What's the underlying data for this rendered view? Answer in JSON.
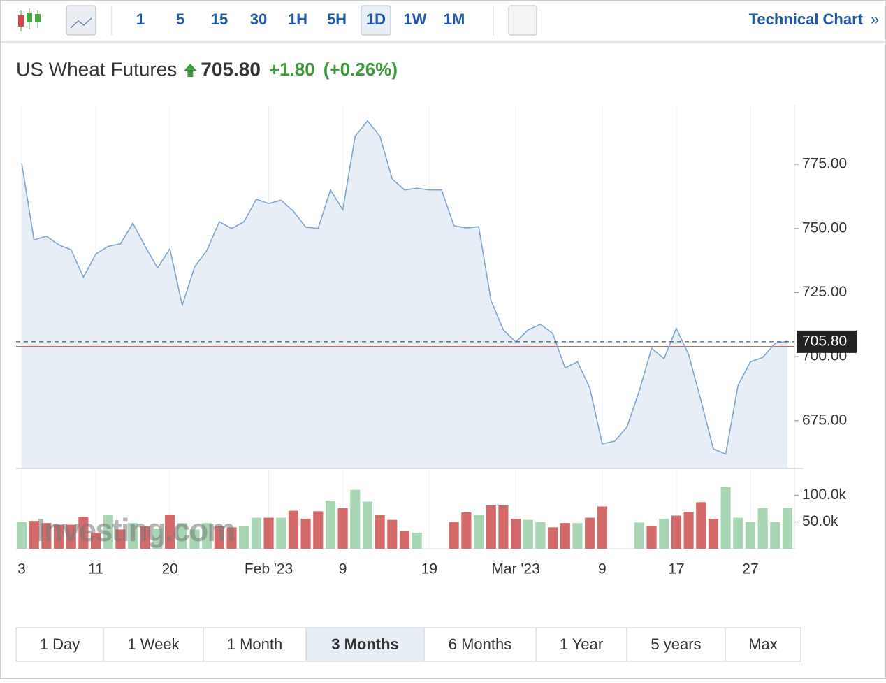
{
  "toolbar": {
    "intervals": [
      "1",
      "5",
      "15",
      "30",
      "1H",
      "5H",
      "1D",
      "1W",
      "1M"
    ],
    "active": "1D",
    "link": "Technical Chart",
    "link_icon": "»"
  },
  "header": {
    "title": "US Wheat Futures",
    "change": "+1.80",
    "change_pct": "(+0.26%)"
  },
  "chart_data": {
    "type": "line",
    "color": "#7ea6cf",
    "fill": "#e8eef5",
    "categories": [
      "3",
      null,
      null,
      null,
      null,
      null,
      "11",
      null,
      null,
      null,
      null,
      null,
      "20",
      null,
      null,
      null,
      null,
      null,
      null,
      null,
      "Feb '23",
      null,
      null,
      null,
      null,
      null,
      "9",
      null,
      null,
      null,
      null,
      null,
      null,
      "19",
      null,
      null,
      null,
      null,
      null,
      null,
      "Mar '23",
      null,
      null,
      null,
      null,
      null,
      null,
      "9",
      null,
      null,
      null,
      null,
      null,
      "17",
      null,
      null,
      null,
      null,
      null,
      "27",
      null,
      null,
      null
    ],
    "values": [
      775.5,
      745.5,
      747,
      743.6,
      741.7,
      731,
      740,
      743,
      744,
      752,
      743,
      734.6,
      742,
      720,
      735,
      741.5,
      752.6,
      750,
      752.6,
      761.4,
      759.7,
      761,
      756.7,
      750.5,
      750,
      765,
      757.3,
      786,
      792,
      786,
      769.3,
      765,
      765.7,
      765,
      765,
      751,
      750.2,
      750.7,
      721.8,
      710.4,
      705.7,
      710.4,
      712.6,
      709,
      695.6,
      698,
      687.7,
      666,
      667,
      672.5,
      686.6,
      703.3,
      699.2,
      711,
      700.8,
      682.8,
      664,
      662,
      688.8,
      698,
      699.7,
      705.2,
      706
    ],
    "ylim": [
      656.4,
      798.2
    ],
    "yticks": [
      {
        "value": 675,
        "label": "675.00"
      },
      {
        "value": 700,
        "label": "700.00"
      },
      {
        "value": 725,
        "label": "725.00"
      },
      {
        "value": 750,
        "label": "750.00"
      },
      {
        "value": 775,
        "label": "775.00"
      }
    ],
    "last": {
      "value": 705.8,
      "label": "705.80"
    },
    "reference_line": 704,
    "grid": true,
    "watermark": "Investing.com",
    "volume": {
      "values": [
        50,
        52,
        48,
        45,
        45,
        60,
        30,
        64,
        36,
        48,
        42,
        38,
        64,
        48,
        36,
        48,
        42,
        40,
        43,
        58,
        58,
        58,
        71,
        56,
        70,
        90,
        76,
        110,
        88,
        63,
        54,
        33,
        30,
        null,
        null,
        50,
        68,
        63,
        81,
        81,
        56,
        54,
        50,
        40,
        48,
        48,
        58,
        79,
        null,
        null,
        49,
        43,
        56,
        62,
        69,
        87,
        56,
        115,
        58,
        50,
        76,
        50,
        76
      ],
      "colors": [
        "#a8d5b4",
        "#d4696a",
        "#d4696a",
        "#d4696a",
        "#d4696a",
        "#d4696a",
        "#d4696a",
        "#a8d5b4",
        "#d4696a",
        "#a8d5b4",
        "#d4696a",
        "#a8d5b4",
        "#d4696a",
        "#a8d5b4",
        "#a8d5b4",
        "#a8d5b4",
        "#d4696a",
        "#d4696a",
        "#a8d5b4",
        "#a8d5b4",
        "#d4696a",
        "#a8d5b4",
        "#d4696a",
        "#d4696a",
        "#d4696a",
        "#a8d5b4",
        "#d4696a",
        "#a8d5b4",
        "#a8d5b4",
        "#d4696a",
        "#d4696a",
        "#d4696a",
        "#a8d5b4",
        null,
        null,
        "#d4696a",
        "#d4696a",
        "#a8d5b4",
        "#d4696a",
        "#d4696a",
        "#d4696a",
        "#a8d5b4",
        "#a8d5b4",
        "#d4696a",
        "#d4696a",
        "#a8d5b4",
        "#d4696a",
        "#d4696a",
        null,
        null,
        "#a8d5b4",
        "#d4696a",
        "#a8d5b4",
        "#d4696a",
        "#d4696a",
        "#d4696a",
        "#d4696a",
        "#a8d5b4",
        "#a8d5b4",
        "#a8d5b4",
        "#a8d5b4",
        "#a8d5b4",
        "#a8d5b4"
      ],
      "ylim": [
        0,
        137
      ],
      "yticks": [
        {
          "value": 50,
          "label": "50.0k"
        },
        {
          "value": 100,
          "label": "100.0k"
        }
      ]
    }
  },
  "ranges": {
    "buttons": [
      "1 Day",
      "1 Week",
      "1 Month",
      "3 Months",
      "6 Months",
      "1 Year",
      "5 years",
      "Max"
    ],
    "active": "3 Months"
  }
}
